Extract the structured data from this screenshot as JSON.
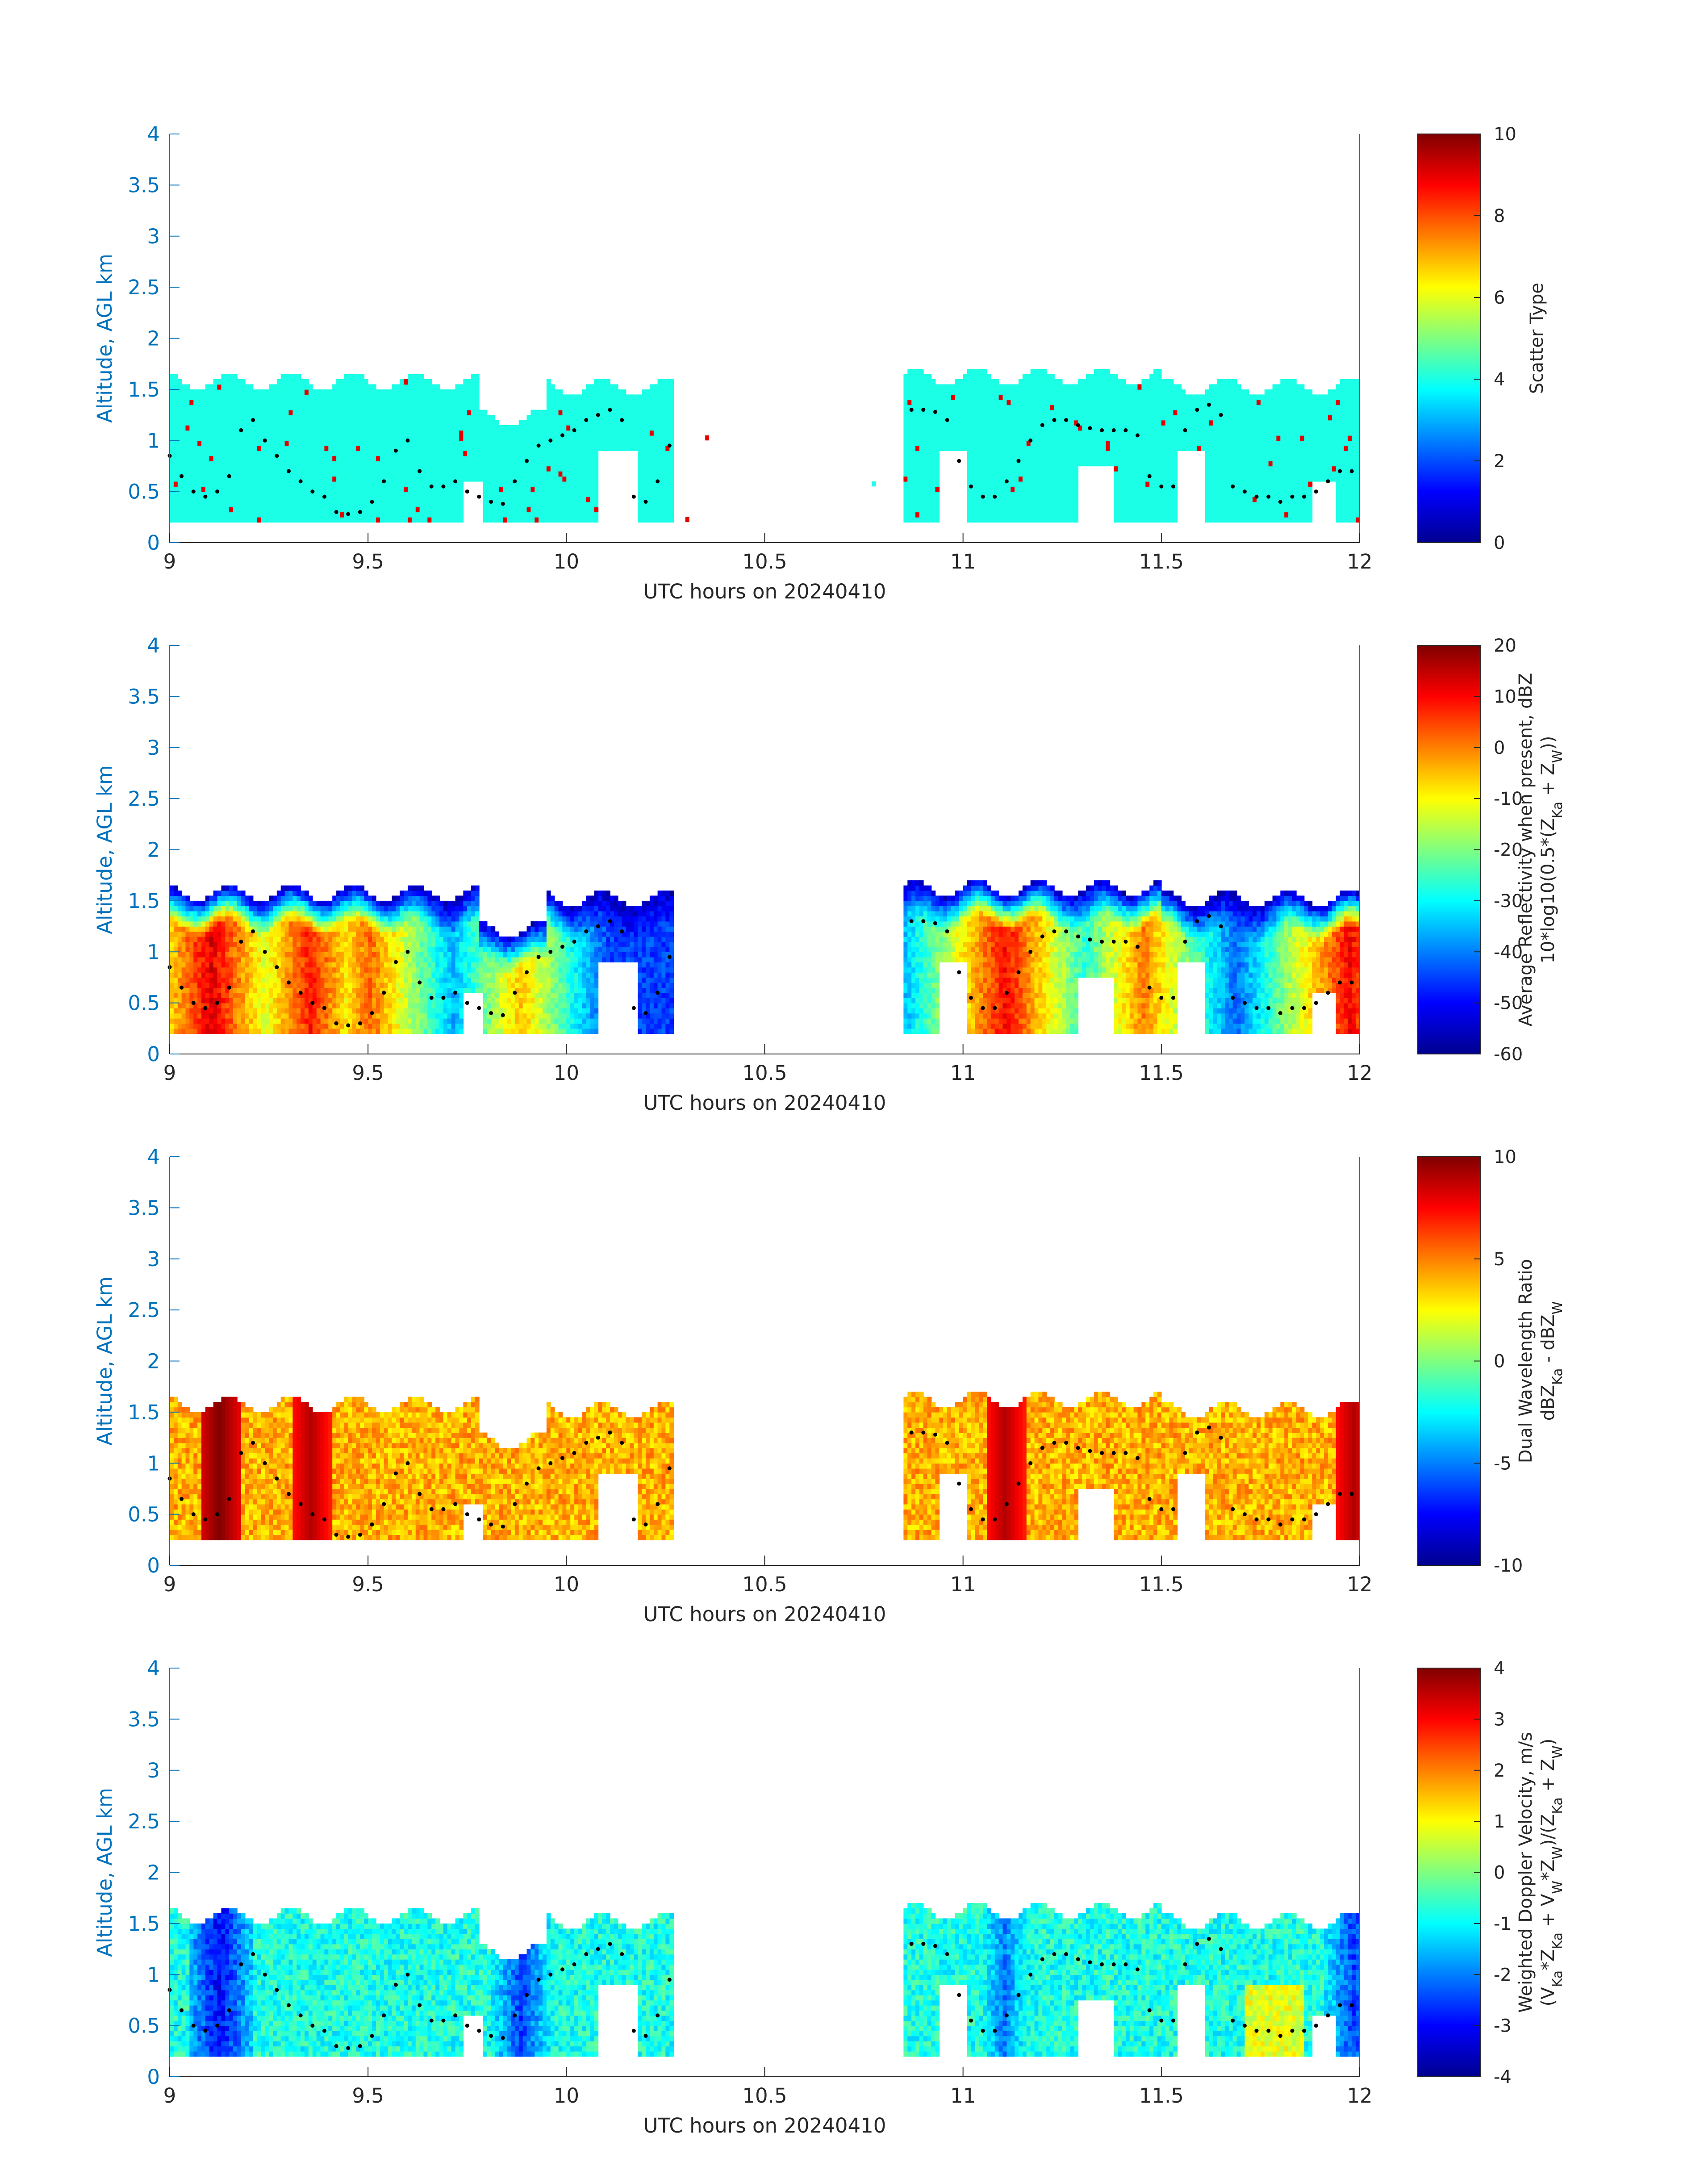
{
  "chart_data": [
    {
      "type": "heatmap",
      "xlabel": "UTC hours on 20240410",
      "ylabel": "Altitude, AGL km",
      "xlim": [
        9,
        12
      ],
      "ylim": [
        0,
        4
      ],
      "xticks": [
        "9",
        "9.5",
        "10",
        "10.5",
        "11",
        "11.5",
        "12"
      ],
      "yticks": [
        "0",
        "0.5",
        "1",
        "1.5",
        "2",
        "2.5",
        "3",
        "3.5",
        "4"
      ],
      "colorbar": {
        "label_lines": [
          "Scatter Type"
        ],
        "clim": [
          0,
          10
        ],
        "ticks": [
          "0",
          "2",
          "4",
          "6",
          "8",
          "10"
        ]
      },
      "colormap": "jet",
      "field": "scatter",
      "dominant_value": 4,
      "coverage": [
        {
          "x": [
            9.0,
            9.78
          ],
          "ytop": 1.55
        },
        {
          "x": [
            9.78,
            9.95
          ],
          "ytop": 1.2
        },
        {
          "x": [
            9.95,
            10.27
          ],
          "ytop": 1.5
        },
        {
          "x": [
            10.85,
            11.5
          ],
          "ytop": 1.6
        },
        {
          "x": [
            11.5,
            12.0
          ],
          "ytop": 1.5
        }
      ],
      "isolated_points": [
        {
          "x": 10.35,
          "y": 1.0,
          "value": 9
        },
        {
          "x": 10.3,
          "y": 0.2,
          "value": 9
        },
        {
          "x": 10.77,
          "y": 0.55,
          "value": 4
        }
      ]
    },
    {
      "type": "heatmap",
      "xlabel": "UTC hours on 20240410",
      "ylabel": "Altitude, AGL km",
      "xlim": [
        9,
        12
      ],
      "ylim": [
        0,
        4
      ],
      "xticks": [
        "9",
        "9.5",
        "10",
        "10.5",
        "11",
        "11.5",
        "12"
      ],
      "yticks": [
        "0",
        "0.5",
        "1",
        "1.5",
        "2",
        "2.5",
        "3",
        "3.5",
        "4"
      ],
      "colorbar": {
        "label_lines": [
          "Average Reflectivity when present, dBZ",
          "10*log10(0.5*(Z",
          "Ka",
          " + Z",
          "W",
          "))"
        ],
        "clim": [
          -60,
          20
        ],
        "ticks": [
          "-60",
          "-50",
          "-40",
          "-30",
          "-20",
          "-10",
          "0",
          "10",
          "20"
        ]
      },
      "colormap": "jet",
      "field": "reflectivity",
      "cores": [
        {
          "x": 9.1,
          "value": 12
        },
        {
          "x": 9.35,
          "value": 8
        },
        {
          "x": 9.5,
          "value": 2
        },
        {
          "x": 9.88,
          "value": -5
        },
        {
          "x": 11.1,
          "value": 10
        },
        {
          "x": 11.45,
          "value": 0
        },
        {
          "x": 11.97,
          "value": 10
        }
      ]
    },
    {
      "type": "heatmap",
      "xlabel": "UTC hours on 20240410",
      "ylabel": "Altitude, AGL km",
      "xlim": [
        9,
        12
      ],
      "ylim": [
        0,
        4
      ],
      "xticks": [
        "9",
        "9.5",
        "10",
        "10.5",
        "11",
        "11.5",
        "12"
      ],
      "yticks": [
        "0",
        "0.5",
        "1",
        "1.5",
        "2",
        "2.5",
        "3",
        "3.5",
        "4"
      ],
      "colorbar": {
        "label_lines": [
          "Dual Wavelength Ratio",
          "dBZ",
          "Ka",
          " - dBZ",
          "W"
        ],
        "clim": [
          -10,
          10
        ],
        "ticks": [
          "-10",
          "-5",
          "0",
          "5",
          "10"
        ]
      },
      "colormap": "jet",
      "field": "dwr",
      "typical_value": 4,
      "maxima": [
        {
          "x": 9.12,
          "value": 10
        },
        {
          "x": 9.35,
          "value": 9
        },
        {
          "x": 11.1,
          "value": 9
        },
        {
          "x": 11.98,
          "value": 9
        }
      ]
    },
    {
      "type": "heatmap",
      "xlabel": "UTC hours on 20240410",
      "ylabel": "Altitude, AGL km",
      "xlim": [
        9,
        12
      ],
      "ylim": [
        0,
        4
      ],
      "xticks": [
        "9",
        "9.5",
        "10",
        "10.5",
        "11",
        "11.5",
        "12"
      ],
      "yticks": [
        "0",
        "0.5",
        "1",
        "1.5",
        "2",
        "2.5",
        "3",
        "3.5",
        "4"
      ],
      "colorbar": {
        "label_lines": [
          "Weighted Doppler Velocity, m/s",
          "(V",
          "Ka",
          "*Z",
          "Ka",
          " + V",
          "W",
          "*Z",
          "W",
          ")/(Z",
          "Ka",
          " + Z",
          "W",
          ")"
        ],
        "clim": [
          -4,
          4
        ],
        "ticks": [
          "-4",
          "-3",
          "-2",
          "-1",
          "0",
          "1",
          "2",
          "3",
          "4"
        ]
      },
      "colormap": "jet",
      "field": "velocity",
      "minima": [
        {
          "x": 9.12,
          "value": -3
        },
        {
          "x": 9.88,
          "value": -2.5
        },
        {
          "x": 11.1,
          "value": -2
        },
        {
          "x": 11.98,
          "value": -2.5
        }
      ]
    }
  ],
  "black_dot_series": {
    "description_free": true,
    "x": [
      9.0,
      9.03,
      9.06,
      9.09,
      9.12,
      9.15,
      9.18,
      9.21,
      9.24,
      9.27,
      9.3,
      9.33,
      9.36,
      9.39,
      9.42,
      9.45,
      9.48,
      9.51,
      9.54,
      9.57,
      9.6,
      9.63,
      9.66,
      9.69,
      9.72,
      9.75,
      9.78,
      9.81,
      9.84,
      9.87,
      9.9,
      9.93,
      9.96,
      9.99,
      10.02,
      10.05,
      10.08,
      10.11,
      10.14,
      10.17,
      10.2,
      10.23,
      10.26,
      10.87,
      10.9,
      10.93,
      10.96,
      10.99,
      11.02,
      11.05,
      11.08,
      11.11,
      11.14,
      11.17,
      11.2,
      11.23,
      11.26,
      11.29,
      11.32,
      11.35,
      11.38,
      11.41,
      11.44,
      11.47,
      11.5,
      11.53,
      11.56,
      11.59,
      11.62,
      11.65,
      11.68,
      11.71,
      11.74,
      11.77,
      11.8,
      11.83,
      11.86,
      11.89,
      11.92,
      11.95,
      11.98
    ],
    "y": [
      0.85,
      0.65,
      0.5,
      0.45,
      0.5,
      0.65,
      1.1,
      1.2,
      1.0,
      0.85,
      0.7,
      0.6,
      0.5,
      0.45,
      0.3,
      0.28,
      0.3,
      0.4,
      0.6,
      0.9,
      1.0,
      0.7,
      0.55,
      0.55,
      0.6,
      0.5,
      0.45,
      0.4,
      0.38,
      0.6,
      0.8,
      0.95,
      1.0,
      1.05,
      1.1,
      1.2,
      1.25,
      1.3,
      1.2,
      0.45,
      0.4,
      0.6,
      0.95,
      1.3,
      1.3,
      1.28,
      1.2,
      0.8,
      0.55,
      0.45,
      0.45,
      0.6,
      0.8,
      1.0,
      1.15,
      1.2,
      1.2,
      1.15,
      1.12,
      1.1,
      1.1,
      1.1,
      1.05,
      0.65,
      0.55,
      0.55,
      1.1,
      1.3,
      1.35,
      1.25,
      0.55,
      0.5,
      0.45,
      0.45,
      0.4,
      0.45,
      0.45,
      0.5,
      0.6,
      0.7,
      0.7
    ]
  }
}
